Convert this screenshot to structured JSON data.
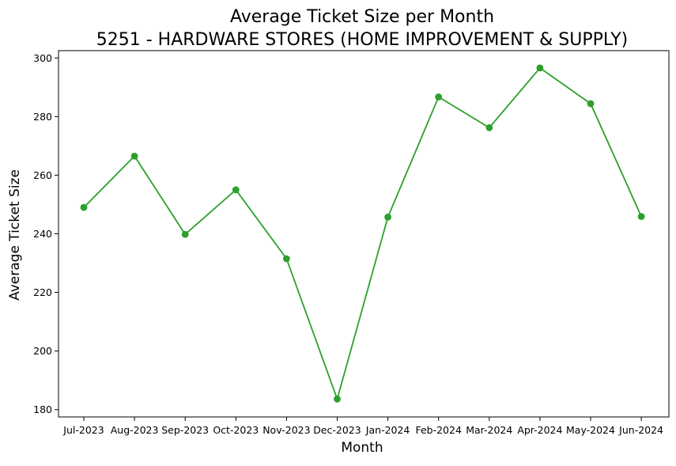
{
  "chart_data": {
    "type": "line",
    "title": "Average Ticket Size per Month",
    "subtitle": "5251 - HARDWARE STORES (HOME IMPROVEMENT & SUPPLY)",
    "xlabel": "Month",
    "ylabel": "Average Ticket Size",
    "categories": [
      "Jul-2023",
      "Aug-2023",
      "Sep-2023",
      "Oct-2023",
      "Nov-2023",
      "Dec-2023",
      "Jan-2024",
      "Feb-2024",
      "Mar-2024",
      "Apr-2024",
      "May-2024",
      "Jun-2024"
    ],
    "values": [
      249.0,
      266.5,
      239.8,
      255.0,
      231.5,
      183.6,
      245.7,
      286.7,
      276.2,
      296.6,
      284.4,
      245.9
    ],
    "yticks": [
      180,
      200,
      220,
      240,
      260,
      280,
      300
    ],
    "ylim": [
      177.5,
      302.5
    ],
    "series_color": "#2ca02c",
    "grid": false,
    "legend": "none"
  }
}
